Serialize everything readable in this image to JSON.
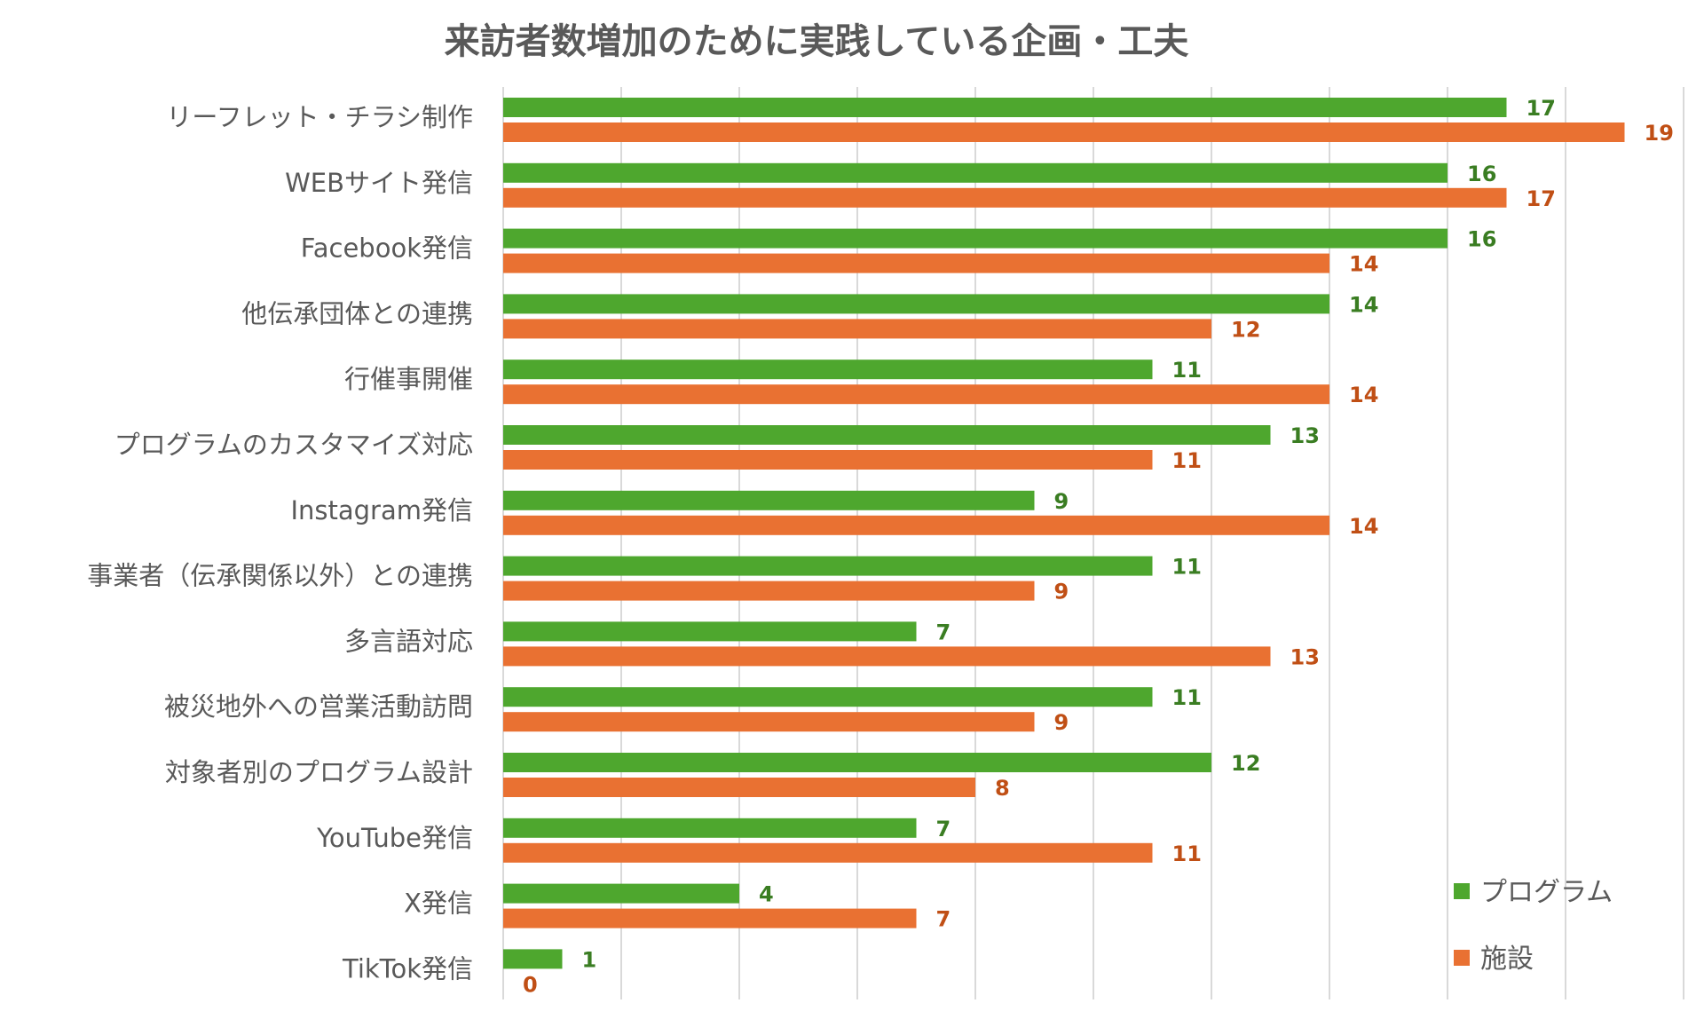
{
  "chart_data": {
    "type": "bar",
    "orientation": "horizontal",
    "title": "来訪者数増加のために実践している企画・工夫",
    "xlabel": "",
    "ylabel": "",
    "xlim": [
      0,
      20
    ],
    "grid": true,
    "legend_position": "bottom-right",
    "categories": [
      "リーフレット・チラシ制作",
      "WEBサイト発信",
      "Facebook発信",
      "他伝承団体との連携",
      "行催事開催",
      "プログラムのカスタマイズ対応",
      "Instagram発信",
      "事業者（伝承関係以外）との連携",
      "多言語対応",
      "被災地外への営業活動訪問",
      "対象者別のプログラム設計",
      "YouTube発信",
      "X発信",
      "TikTok発信"
    ],
    "series": [
      {
        "name": "プログラム",
        "color": "#4EA72E",
        "label_color": "#3A7D22",
        "values": [
          17,
          16,
          16,
          14,
          11,
          13,
          9,
          11,
          7,
          11,
          12,
          7,
          4,
          1
        ]
      },
      {
        "name": "施設",
        "color": "#E97132",
        "label_color": "#C04F15",
        "values": [
          19,
          17,
          14,
          12,
          14,
          11,
          14,
          9,
          13,
          9,
          8,
          11,
          7,
          0
        ]
      }
    ]
  }
}
